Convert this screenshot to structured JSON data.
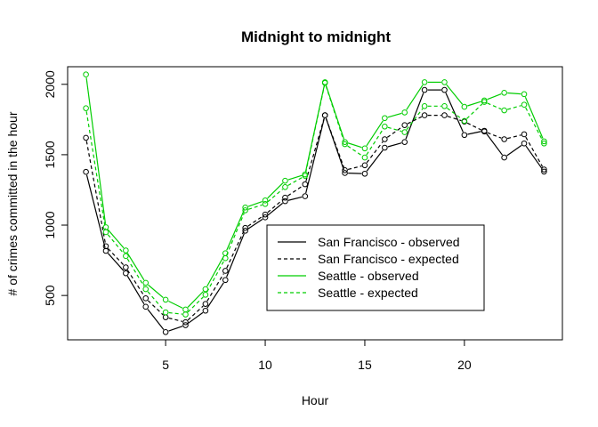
{
  "chart_data": {
    "type": "line",
    "title": "Midnight to midnight",
    "xlabel": "Hour",
    "ylabel": "# of crimes committed in the hour",
    "xlim": [
      0.08,
      24.92
    ],
    "ylim": [
      185,
      2125
    ],
    "x_ticks": [
      5,
      10,
      15,
      20
    ],
    "y_ticks": [
      500,
      1000,
      1500,
      2000
    ],
    "grid": false,
    "legend_position": "bottom-right",
    "x": [
      1,
      2,
      3,
      4,
      5,
      6,
      7,
      8,
      9,
      10,
      11,
      12,
      13,
      14,
      15,
      16,
      17,
      18,
      19,
      20,
      21,
      22,
      23,
      24
    ],
    "series": [
      {
        "name": "San Francisco - observed",
        "color": "#000000",
        "line_style": "solid",
        "marker": "open-circle",
        "values": [
          1378,
          817,
          658,
          420,
          240,
          289,
          392,
          610,
          960,
          1055,
          1170,
          1205,
          1780,
          1370,
          1365,
          1550,
          1590,
          1960,
          1960,
          1640,
          1670,
          1480,
          1580,
          1380
        ]
      },
      {
        "name": "San Francisco - expected",
        "color": "#000000",
        "line_style": "dashed",
        "marker": "open-circle",
        "values": [
          1620,
          850,
          700,
          480,
          345,
          310,
          440,
          675,
          980,
          1075,
          1195,
          1290,
          1780,
          1390,
          1425,
          1610,
          1710,
          1780,
          1780,
          1735,
          1665,
          1610,
          1645,
          1395
        ]
      },
      {
        "name": "Seattle - observed",
        "color": "#00CD00",
        "line_style": "solid",
        "marker": "open-circle",
        "values": [
          2070,
          985,
          820,
          590,
          470,
          400,
          545,
          800,
          1125,
          1175,
          1315,
          1360,
          2015,
          1590,
          1545,
          1760,
          1800,
          2015,
          2015,
          1840,
          1885,
          1940,
          1930,
          1595
        ]
      },
      {
        "name": "Seattle - expected",
        "color": "#00CD00",
        "line_style": "dashed",
        "marker": "open-circle",
        "values": [
          1830,
          950,
          780,
          545,
          380,
          365,
          505,
          765,
          1105,
          1150,
          1270,
          1350,
          2010,
          1575,
          1480,
          1700,
          1660,
          1845,
          1845,
          1740,
          1875,
          1815,
          1855,
          1580
        ]
      }
    ]
  }
}
